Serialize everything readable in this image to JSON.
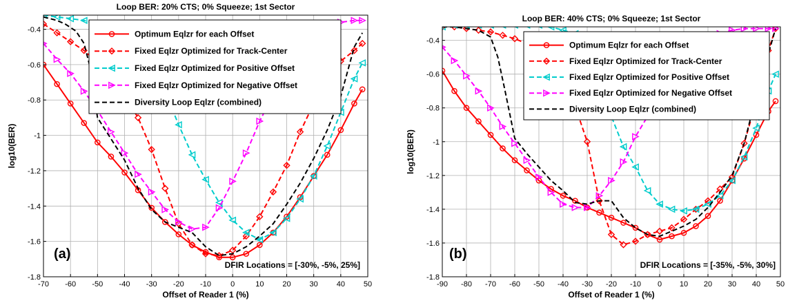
{
  "chart_data": [
    {
      "type": "line",
      "title": "Loop BER:  20% CTS;  0% Squeeze;  1st Sector",
      "xlabel": "Offset of Reader 1 (%)",
      "ylabel": "log10(BER)",
      "xlim": [
        -70,
        50
      ],
      "ylim": [
        -1.8,
        -0.32
      ],
      "xticks": [
        -70,
        -60,
        -50,
        -40,
        -30,
        -20,
        -10,
        0,
        10,
        20,
        30,
        40,
        50
      ],
      "yticks": [
        -1.8,
        -1.6,
        -1.4,
        -1.2,
        -1,
        -0.8,
        -0.6,
        -0.4
      ],
      "ytick_labels": [
        "-1.8",
        "-1.6",
        "-1.4",
        "-1.2",
        "-1",
        "-0.8",
        "-0.6",
        "-0.4"
      ],
      "xtick_labels": [
        "-70",
        "-60",
        "-50",
        "-40",
        "-30",
        "-20",
        "-10",
        "0",
        "10",
        "20",
        "30",
        "40",
        "50"
      ],
      "grid": true,
      "legend_position": "top-right",
      "panel_label": "(a)",
      "annotation": "DFIR Locations = [-30%, -5%, 25%]",
      "series": [
        {
          "name": "Optimum Eqlzr for each Offset",
          "color": "#ff0000",
          "dash": "solid",
          "marker": "circle",
          "x": [
            -70,
            -65,
            -60,
            -55,
            -50,
            -45,
            -40,
            -35,
            -30,
            -25,
            -20,
            -15,
            -10,
            -5,
            0,
            5,
            10,
            15,
            20,
            25,
            30,
            35,
            40,
            45,
            48
          ],
          "y": [
            -0.6,
            -0.71,
            -0.82,
            -0.93,
            -1.04,
            -1.12,
            -1.21,
            -1.31,
            -1.41,
            -1.49,
            -1.56,
            -1.62,
            -1.66,
            -1.69,
            -1.69,
            -1.67,
            -1.62,
            -1.55,
            -1.46,
            -1.35,
            -1.23,
            -1.11,
            -0.97,
            -0.82,
            -0.74
          ]
        },
        {
          "name": "Fixed Eqlzr Optimized for Track-Center",
          "color": "#ff0000",
          "dash": "dashed",
          "marker": "diamond",
          "x": [
            -70,
            -65,
            -60,
            -55,
            -50,
            -45,
            -40,
            -35,
            -30,
            -25,
            -20,
            -15,
            -10,
            -5,
            0,
            5,
            10,
            15,
            20,
            25,
            30,
            35,
            40,
            45,
            48
          ],
          "y": [
            -0.37,
            -0.42,
            -0.47,
            -0.52,
            -0.59,
            -0.68,
            -0.78,
            -0.9,
            -1.08,
            -1.3,
            -1.5,
            -1.62,
            -1.67,
            -1.68,
            -1.65,
            -1.57,
            -1.46,
            -1.32,
            -1.17,
            -0.98,
            -0.82,
            -0.68,
            -0.58,
            -0.52,
            -0.48
          ]
        },
        {
          "name": "Fixed Eqlzr Optimized for Positive Offset",
          "color": "#00cccc",
          "dash": "dashed",
          "marker": "triangle-left",
          "x": [
            -70,
            -65,
            -60,
            -55,
            -50,
            -45,
            -40,
            -35,
            -30,
            -25,
            -20,
            -15,
            -10,
            -5,
            0,
            5,
            10,
            15,
            20,
            25,
            30,
            35,
            40,
            45,
            48
          ],
          "y": [
            -0.32,
            -0.33,
            -0.34,
            -0.35,
            -0.37,
            -0.39,
            -0.42,
            -0.48,
            -0.58,
            -0.75,
            -0.94,
            -1.11,
            -1.25,
            -1.38,
            -1.48,
            -1.55,
            -1.59,
            -1.55,
            -1.47,
            -1.36,
            -1.23,
            -1.06,
            -0.87,
            -0.68,
            -0.59
          ]
        },
        {
          "name": "Fixed Eqlzr Optimized for Negative Offset",
          "color": "#ff00ff",
          "dash": "dashed",
          "marker": "triangle-right",
          "x": [
            -70,
            -65,
            -60,
            -55,
            -50,
            -45,
            -40,
            -35,
            -30,
            -25,
            -20,
            -15,
            -10,
            -5,
            0,
            5,
            10,
            15,
            20,
            25,
            30,
            35,
            40,
            45,
            48
          ],
          "y": [
            -0.48,
            -0.57,
            -0.65,
            -0.75,
            -0.86,
            -0.98,
            -1.1,
            -1.22,
            -1.32,
            -1.42,
            -1.49,
            -1.53,
            -1.52,
            -1.41,
            -1.26,
            -1.1,
            -0.92,
            -0.77,
            -0.62,
            -0.5,
            -0.42,
            -0.38,
            -0.36,
            -0.35,
            -0.35
          ]
        },
        {
          "name": "Diversity Loop Eqlzr (combined)",
          "color": "#000000",
          "dash": "dashed",
          "marker": "none",
          "x": [
            -70,
            -65,
            -62,
            -58,
            -55,
            -53,
            -50,
            -45,
            -40,
            -35,
            -30,
            -25,
            -20,
            -15,
            -10,
            -5,
            0,
            5,
            10,
            15,
            20,
            25,
            30,
            35,
            40,
            45,
            48
          ],
          "y": [
            -0.33,
            -0.35,
            -0.37,
            -0.41,
            -0.48,
            -0.6,
            -0.9,
            -1.02,
            -1.14,
            -1.3,
            -1.42,
            -1.49,
            -1.52,
            -1.55,
            -1.63,
            -1.68,
            -1.67,
            -1.63,
            -1.57,
            -1.5,
            -1.39,
            -1.27,
            -1.13,
            -0.97,
            -0.78,
            -0.5,
            -0.42
          ]
        }
      ]
    },
    {
      "type": "line",
      "title": "Loop BER:  40% CTS;  0% Squeeze;  1st Sector",
      "xlabel": "Offset of Reader 1 (%)",
      "ylabel": "log10(BER)",
      "xlim": [
        -90,
        50
      ],
      "ylim": [
        -1.8,
        -0.32
      ],
      "xticks": [
        -90,
        -80,
        -70,
        -60,
        -50,
        -40,
        -30,
        -20,
        -10,
        0,
        10,
        20,
        30,
        40,
        50
      ],
      "yticks": [
        -1.8,
        -1.6,
        -1.4,
        -1.2,
        -1,
        -0.8,
        -0.6,
        -0.4
      ],
      "ytick_labels": [
        "-1.8",
        "-1.6",
        "-1.4",
        "-1.2",
        "-1",
        "-0.8",
        "-0.6",
        "-0.4"
      ],
      "xtick_labels": [
        "-90",
        "-80",
        "-70",
        "-60",
        "-50",
        "-40",
        "-30",
        "-20",
        "-10",
        "0",
        "10",
        "20",
        "30",
        "40",
        "50"
      ],
      "grid": true,
      "legend_position": "top-right",
      "panel_label": "(b)",
      "annotation": "DFIR Locations = [-35%, -5%, 30%]",
      "series": [
        {
          "name": "Optimum Eqlzr for each Offset",
          "color": "#ff0000",
          "dash": "solid",
          "marker": "circle",
          "x": [
            -90,
            -85,
            -80,
            -75,
            -70,
            -65,
            -60,
            -55,
            -50,
            -45,
            -40,
            -35,
            -30,
            -25,
            -20,
            -15,
            -10,
            -5,
            0,
            5,
            10,
            15,
            20,
            25,
            30,
            35,
            40,
            45,
            48
          ],
          "y": [
            -0.58,
            -0.7,
            -0.8,
            -0.88,
            -0.96,
            -1.04,
            -1.11,
            -1.17,
            -1.23,
            -1.28,
            -1.32,
            -1.35,
            -1.39,
            -1.42,
            -1.45,
            -1.48,
            -1.51,
            -1.55,
            -1.58,
            -1.56,
            -1.54,
            -1.5,
            -1.44,
            -1.35,
            -1.23,
            -1.1,
            -0.96,
            -0.82,
            -0.76
          ]
        },
        {
          "name": "Fixed Eqlzr Optimized for Track-Center",
          "color": "#ff0000",
          "dash": "dashed",
          "marker": "diamond",
          "x": [
            -90,
            -85,
            -80,
            -75,
            -70,
            -65,
            -60,
            -55,
            -50,
            -45,
            -40,
            -35,
            -30,
            -25,
            -20,
            -15,
            -10,
            -5,
            0,
            5,
            10,
            15,
            20,
            25,
            30,
            35,
            40,
            45,
            48
          ],
          "y": [
            -0.32,
            -0.32,
            -0.33,
            -0.34,
            -0.35,
            -0.37,
            -0.39,
            -0.42,
            -0.47,
            -0.55,
            -0.66,
            -0.79,
            -1.0,
            -1.35,
            -1.55,
            -1.61,
            -1.59,
            -1.55,
            -1.53,
            -1.51,
            -1.46,
            -1.4,
            -1.35,
            -1.28,
            -1.21,
            -1.01,
            -0.76,
            -0.46,
            -0.33
          ]
        },
        {
          "name": "Fixed Eqlzr Optimized for Positive Offset",
          "color": "#00cccc",
          "dash": "dashed",
          "marker": "triangle-left",
          "x": [
            -90,
            -85,
            -80,
            -75,
            -70,
            -65,
            -60,
            -55,
            -50,
            -45,
            -40,
            -35,
            -30,
            -25,
            -20,
            -15,
            -10,
            -5,
            0,
            5,
            10,
            15,
            20,
            25,
            30,
            35,
            40,
            45,
            48
          ],
          "y": [
            -0.32,
            -0.31,
            -0.31,
            -0.31,
            -0.31,
            -0.31,
            -0.31,
            -0.31,
            -0.31,
            -0.32,
            -0.34,
            -0.36,
            -0.42,
            -0.62,
            -0.85,
            -1.03,
            -1.15,
            -1.29,
            -1.37,
            -1.4,
            -1.41,
            -1.4,
            -1.37,
            -1.32,
            -1.23,
            -1.09,
            -0.92,
            -0.7,
            -0.6
          ]
        },
        {
          "name": "Fixed Eqlzr Optimized for Negative Offset",
          "color": "#ff00ff",
          "dash": "dashed",
          "marker": "triangle-right",
          "x": [
            -90,
            -85,
            -80,
            -75,
            -70,
            -65,
            -60,
            -55,
            -50,
            -45,
            -40,
            -35,
            -30,
            -25,
            -20,
            -15,
            -10,
            -5,
            0,
            5,
            10,
            15,
            20,
            25,
            30,
            35,
            40,
            45,
            48
          ],
          "y": [
            -0.44,
            -0.52,
            -0.61,
            -0.7,
            -0.8,
            -0.91,
            -1.01,
            -1.11,
            -1.21,
            -1.3,
            -1.37,
            -1.39,
            -1.39,
            -1.32,
            -1.23,
            -1.12,
            -0.97,
            -0.85,
            -0.72,
            -0.6,
            -0.5,
            -0.43,
            -0.39,
            -0.36,
            -0.34,
            -0.33,
            -0.33,
            -0.33,
            -0.33
          ]
        },
        {
          "name": "Diversity Loop Eqlzr (combined)",
          "color": "#000000",
          "dash": "dashed",
          "marker": "none",
          "x": [
            -90,
            -85,
            -80,
            -75,
            -70,
            -67,
            -64,
            -60,
            -55,
            -50,
            -45,
            -40,
            -35,
            -30,
            -25,
            -20,
            -15,
            -10,
            -5,
            0,
            5,
            10,
            15,
            20,
            25,
            30,
            35,
            40,
            45,
            48
          ],
          "y": [
            -0.32,
            -0.32,
            -0.33,
            -0.34,
            -0.38,
            -0.5,
            -0.7,
            -0.98,
            -1.07,
            -1.15,
            -1.23,
            -1.29,
            -1.36,
            -1.37,
            -1.35,
            -1.35,
            -1.45,
            -1.51,
            -1.55,
            -1.56,
            -1.53,
            -1.5,
            -1.46,
            -1.39,
            -1.3,
            -1.2,
            -1.01,
            -0.73,
            -0.48,
            -0.33
          ]
        }
      ]
    }
  ]
}
